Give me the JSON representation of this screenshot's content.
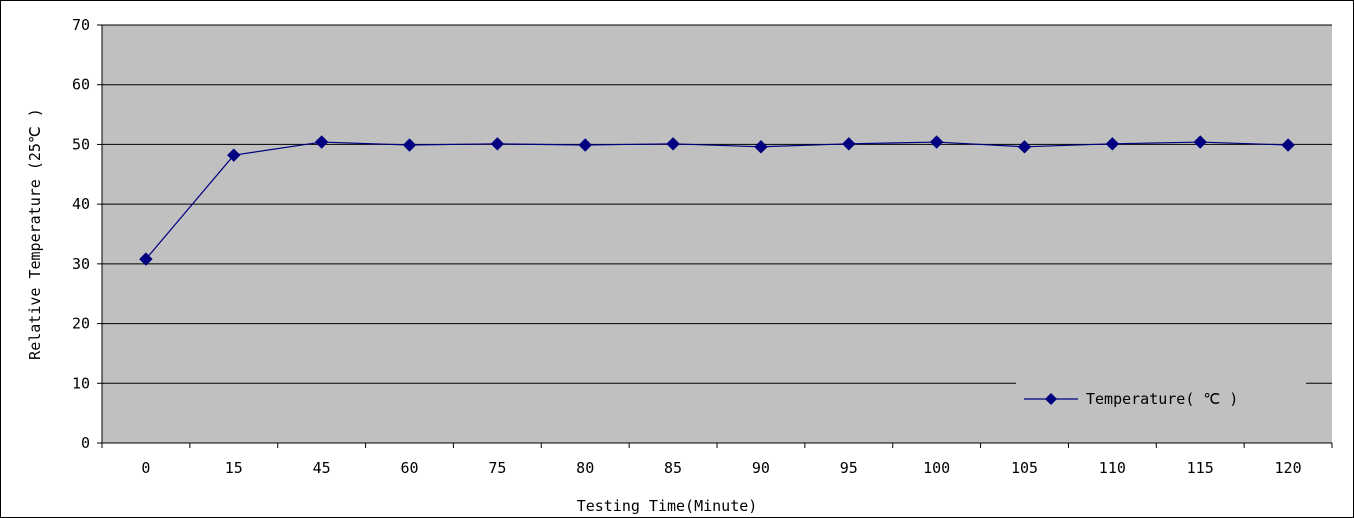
{
  "colors": {
    "plot_background": "#c0c0c0",
    "gridline": "#000000",
    "series": "#000080",
    "page_background": "#ffffff"
  },
  "chart_data": {
    "type": "line",
    "title": "",
    "xlabel": "Testing Time(Minute)",
    "ylabel": "Relative Temperature (25℃ )",
    "categories": [
      "0",
      "15",
      "45",
      "60",
      "75",
      "80",
      "85",
      "90",
      "95",
      "100",
      "105",
      "110",
      "115",
      "120"
    ],
    "series": [
      {
        "name": "Temperature( ℃ )",
        "marker": "diamond",
        "values": [
          30.8,
          48.2,
          50.4,
          49.9,
          50.1,
          49.9,
          50.1,
          49.6,
          50.1,
          50.4,
          49.6,
          50.1,
          50.4,
          49.9
        ]
      }
    ],
    "ylim": [
      0,
      70
    ],
    "yticks": [
      0,
      10,
      20,
      30,
      40,
      50,
      60,
      70
    ],
    "grid": true,
    "legend_position": "bottom-right inside plot"
  }
}
